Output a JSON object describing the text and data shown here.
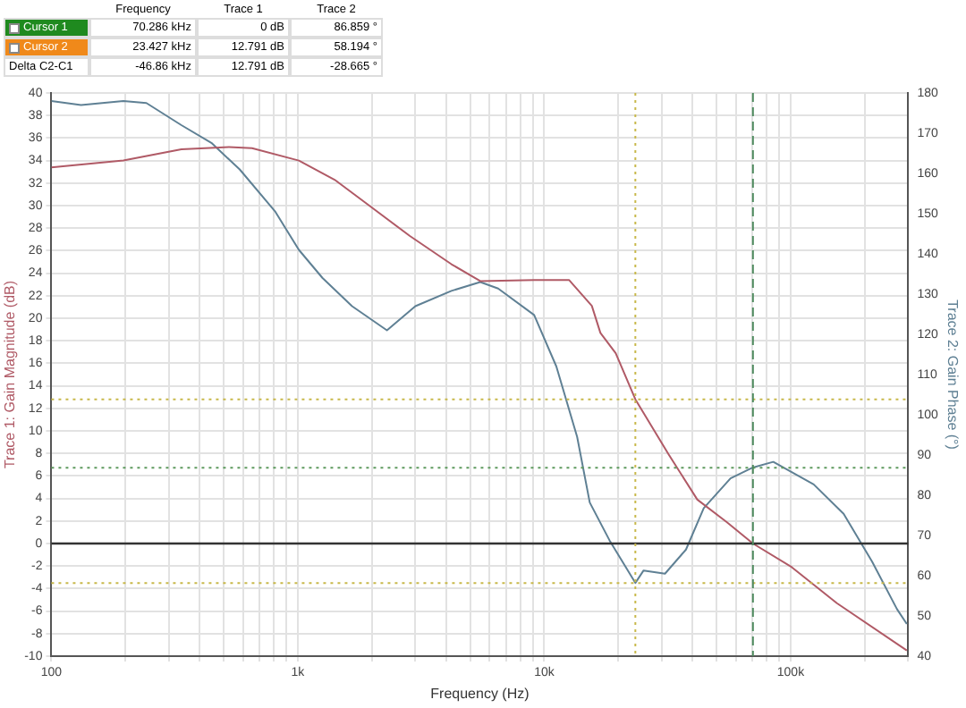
{
  "chart_data": {
    "type": "line",
    "xlabel": "Frequency (Hz)",
    "ylabel": "Trace 1: Gain Magnitude (dB)",
    "y2label": "Trace 2: Gain Phase (°)",
    "annotations": [
      "Frequency",
      "Trace 1",
      "Trace 2",
      "Cursor 1",
      "70.286 kHz",
      "0 dB",
      "86.859 °",
      "Cursor 2",
      "23.427 kHz",
      "12.791 dB",
      "58.194 °",
      "Delta C2-C1",
      "-46.86 kHz",
      "12.791 dB",
      "-28.665 °"
    ],
    "series": [
      {
        "color": "#b05a66",
        "x": [
          100,
          196,
          337,
          526,
          652,
          1010,
          1410,
          1950,
          2850,
          4200,
          5500,
          9100,
          12600,
          15600,
          16900,
          19500,
          23427,
          32000,
          41800,
          55000,
          70286,
          101000,
          154000,
          296000
        ],
        "values": [
          33.4,
          34.0,
          35.0,
          35.2,
          35.1,
          34.0,
          32.3,
          30.0,
          27.3,
          24.8,
          23.3,
          23.4,
          23.4,
          21.1,
          18.7,
          16.9,
          12.8,
          7.9,
          3.9,
          1.9,
          0,
          -2.1,
          -5.3,
          -9.5
        ]
      },
      {
        "color": "#5f8094",
        "axis": "y2",
        "x": [
          100,
          132,
          196,
          243,
          337,
          446,
          581,
          808,
          1010,
          1260,
          1660,
          2300,
          3000,
          4200,
          5500,
          6500,
          9100,
          11200,
          13600,
          15300,
          18400,
          23427,
          25300,
          30900,
          37600,
          44400,
          57000,
          70286,
          85000,
          124000,
          164000,
          214000,
          270000,
          296000
        ],
        "values": [
          178,
          177,
          178,
          177.5,
          172,
          167.6,
          161,
          150.6,
          141,
          134,
          127,
          121,
          127,
          130.8,
          133,
          131.4,
          124.8,
          112,
          94.5,
          78.2,
          68.8,
          58.2,
          61.3,
          60.5,
          66.5,
          76.8,
          84.2,
          86.9,
          88.3,
          82.7,
          75.4,
          63.5,
          51.7,
          48
        ]
      }
    ],
    "log": "x",
    "xlim": [
      100,
      300000
    ],
    "xticks": [
      100,
      {
        "value": 200,
        "label": null
      },
      {
        "value": 300,
        "label": null
      },
      {
        "value": 400,
        "label": null
      },
      {
        "value": 500,
        "label": null
      },
      {
        "value": 600,
        "label": null
      },
      {
        "value": 700,
        "label": null
      },
      {
        "value": 800,
        "label": null
      },
      {
        "value": 900,
        "label": null
      },
      {
        "value": 1000,
        "label": "1k"
      },
      {
        "value": 2000,
        "label": null
      },
      {
        "value": 3000,
        "label": null
      },
      {
        "value": 4000,
        "label": null
      },
      {
        "value": 5000,
        "label": null
      },
      {
        "value": 6000,
        "label": null
      },
      {
        "value": 7000,
        "label": null
      },
      {
        "value": 8000,
        "label": null
      },
      {
        "value": 9000,
        "label": null
      },
      {
        "value": 10000,
        "label": "10k"
      },
      {
        "value": 20000,
        "label": null
      },
      {
        "value": 30000,
        "label": null
      },
      {
        "value": 40000,
        "label": null
      },
      {
        "value": 50000,
        "label": null
      },
      {
        "value": 60000,
        "label": null
      },
      {
        "value": 70000,
        "label": null
      },
      {
        "value": 80000,
        "label": null
      },
      {
        "value": 90000,
        "label": null
      },
      {
        "value": 100000,
        "label": "100k"
      },
      {
        "value": 200000,
        "label": null
      },
      {
        "value": 300000,
        "label": null
      }
    ],
    "ylim": [
      -10,
      40
    ],
    "yticks": [
      -10,
      -8,
      -6,
      -4,
      -2,
      0,
      2,
      4,
      6,
      8,
      10,
      12,
      14,
      16,
      18,
      20,
      22,
      24,
      26,
      28,
      30,
      32,
      34,
      36,
      38,
      40
    ],
    "y2lim": [
      40,
      180
    ],
    "y2ticks": [
      40,
      50,
      60,
      70,
      80,
      90,
      100,
      110,
      120,
      130,
      140,
      150,
      160,
      170,
      180
    ],
    "ref_lines": [
      {
        "axis": "y",
        "value": 0,
        "color": "#333333",
        "line_style": "solid"
      },
      {
        "axis": "y",
        "value": 12.791,
        "color": "#c8b84a",
        "line_style": "dotted"
      },
      {
        "axis": "y2",
        "value": 86.859,
        "color": "#5e9a5e",
        "line_style": "dotted"
      },
      {
        "axis": "y2",
        "value": 58.194,
        "color": "#c8b84a",
        "line_style": "dotted"
      },
      {
        "axis": "x",
        "value": 23427,
        "color": "#c8b84a",
        "line_style": "dotted"
      },
      {
        "axis": "x",
        "value": 70286,
        "color": "#4e8a5e",
        "line_style": "dashed"
      }
    ],
    "grid": true,
    "legend": false,
    "marker": "none",
    "line_style": "solid"
  }
}
